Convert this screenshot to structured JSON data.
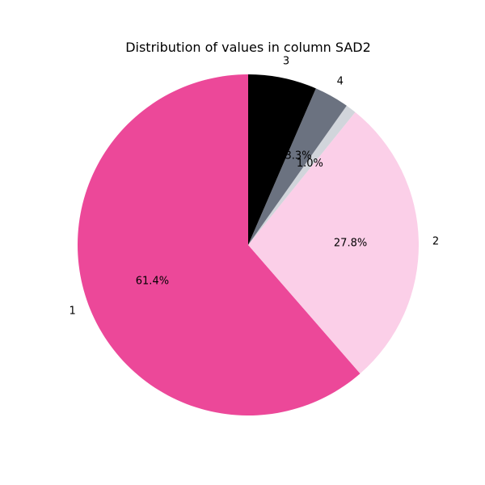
{
  "chart_data": {
    "type": "pie",
    "title": "Distribution of values in column SAD2",
    "slices": [
      {
        "label": "1",
        "value": 61.4,
        "pct_label": "61.4%",
        "color": "#ec4899"
      },
      {
        "label": "2",
        "value": 27.8,
        "pct_label": "27.8%",
        "color": "#fbcfe8"
      },
      {
        "label": "",
        "value": 1.0,
        "pct_label": "1.0%",
        "color": "#d1d5db"
      },
      {
        "label": "4",
        "value": 3.3,
        "pct_label": "3.3%",
        "color": "#6b7280"
      },
      {
        "label": "3",
        "value": 6.5,
        "pct_label": "",
        "color": "#000000"
      }
    ]
  }
}
